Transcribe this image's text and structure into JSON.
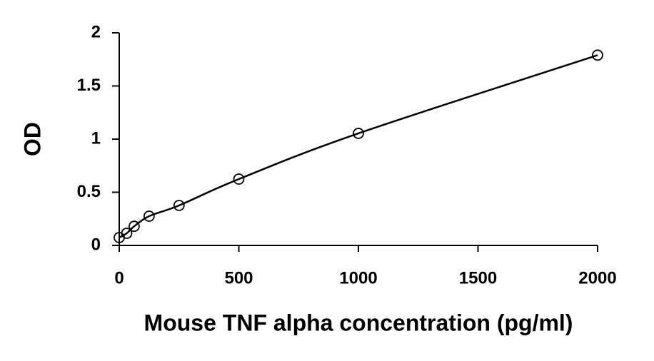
{
  "chart_data": {
    "type": "scatter",
    "x_label": "Mouse TNF alpha concentration (pg/ml)",
    "y_label": "OD",
    "series": [
      {
        "color": "#000000",
        "x": [
          0,
          31.25,
          62.5,
          125,
          250,
          500,
          1000,
          2000
        ],
        "values": [
          0.074,
          0.114,
          0.18,
          0.275,
          0.376,
          0.624,
          1.054,
          1.79
        ]
      }
    ],
    "xlim": [
      0,
      2000
    ],
    "xticks": [
      0,
      500,
      1000,
      1500,
      2000
    ],
    "ylim": [
      0,
      2
    ],
    "yticks": [
      0,
      0.5,
      1,
      1.5,
      2
    ],
    "grid": false,
    "trendline": true
  }
}
